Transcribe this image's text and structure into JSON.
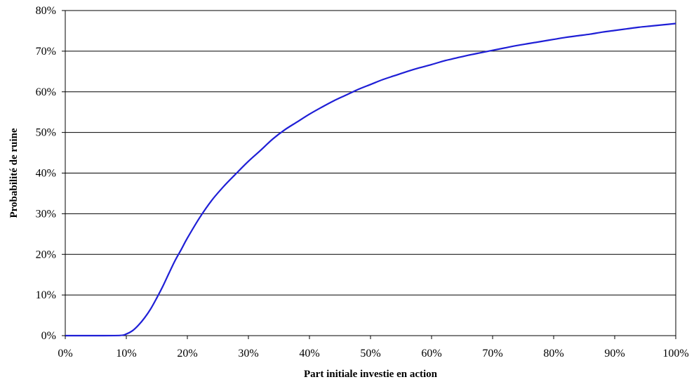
{
  "colors": {
    "line": "#1f1fd6",
    "grid": "#000000",
    "background": "#ffffff"
  },
  "chart_data": {
    "type": "line",
    "title": "",
    "xlabel": "Part initiale investie en action",
    "ylabel": "Probabilité de ruine",
    "xlim": [
      0,
      100
    ],
    "ylim": [
      0,
      80
    ],
    "x_ticks": [
      "0%",
      "10%",
      "20%",
      "30%",
      "40%",
      "50%",
      "60%",
      "70%",
      "80%",
      "90%",
      "100%"
    ],
    "y_ticks": [
      "0%",
      "10%",
      "20%",
      "30%",
      "40%",
      "50%",
      "60%",
      "70%",
      "80%"
    ],
    "grid": "horizontal",
    "legend": "none",
    "series": [
      {
        "x": [
          0,
          5,
          9,
          10,
          11,
          12,
          13,
          14,
          15,
          16,
          17,
          18,
          19,
          20,
          22,
          24,
          26,
          28,
          30,
          32,
          34,
          36,
          38,
          40,
          42,
          44,
          46,
          48,
          50,
          52,
          54,
          56,
          58,
          60,
          62,
          64,
          66,
          68,
          70,
          72,
          74,
          76,
          78,
          80,
          82,
          84,
          86,
          88,
          90,
          92,
          94,
          96,
          98,
          100
        ],
        "values": [
          0,
          0,
          0.05,
          0.4,
          1.2,
          2.6,
          4.4,
          6.6,
          9.3,
          12.2,
          15.4,
          18.5,
          21.2,
          24.0,
          29.0,
          33.3,
          36.8,
          39.9,
          42.9,
          45.6,
          48.4,
          50.7,
          52.6,
          54.5,
          56.2,
          57.8,
          59.2,
          60.6,
          61.8,
          63.0,
          64.0,
          65.0,
          65.9,
          66.7,
          67.6,
          68.3,
          69.0,
          69.6,
          70.2,
          70.8,
          71.4,
          71.9,
          72.4,
          72.9,
          73.4,
          73.8,
          74.2,
          74.7,
          75.1,
          75.5,
          75.9,
          76.2,
          76.5,
          76.8
        ]
      }
    ]
  }
}
